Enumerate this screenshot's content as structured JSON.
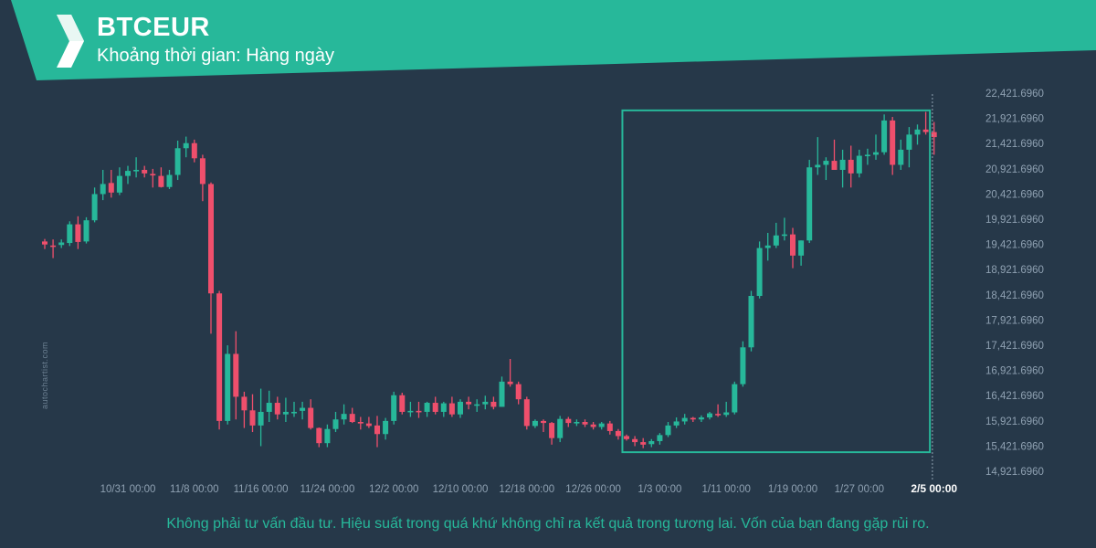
{
  "header": {
    "symbol": "BTCEUR",
    "interval_label": "Khoảng thời gian: Hàng ngày",
    "logo_icon": "autochartist-logo-icon",
    "accent_color": "#27b89a"
  },
  "watermark": "autochartist.com",
  "disclaimer": "Không phải tư vấn đầu tư. Hiệu suất trong quá khứ không chỉ ra kết quả trong tương lai. Vốn của bạn đang gặp rủi ro.",
  "chart_data": {
    "type": "candlestick",
    "up_color": "#27b89a",
    "down_color": "#ef4f6c",
    "pattern_box_color": "#27b89a",
    "y_range": [
      14800,
      22700
    ],
    "y_ticks": [
      "22,421.6960",
      "21,921.6960",
      "21,421.6960",
      "20,921.6960",
      "20,421.6960",
      "19,921.6960",
      "19,421.6960",
      "18,921.6960",
      "18,421.6960",
      "17,921.6960",
      "17,421.6960",
      "16,921.6960",
      "16,421.6960",
      "15,921.6960",
      "15,421.6960",
      "14,921.6960"
    ],
    "x_ticks": [
      {
        "label": "10/31 00:00",
        "day": 10
      },
      {
        "label": "11/8 00:00",
        "day": 18
      },
      {
        "label": "11/16 00:00",
        "day": 26
      },
      {
        "label": "11/24 00:00",
        "day": 34
      },
      {
        "label": "12/2 00:00",
        "day": 42
      },
      {
        "label": "12/10 00:00",
        "day": 50
      },
      {
        "label": "12/18 00:00",
        "day": 58
      },
      {
        "label": "12/26 00:00",
        "day": 66
      },
      {
        "label": "1/3 00:00",
        "day": 74
      },
      {
        "label": "1/11 00:00",
        "day": 82
      },
      {
        "label": "1/19 00:00",
        "day": 90
      },
      {
        "label": "1/27 00:00",
        "day": 98
      },
      {
        "label": "2/5 00:00",
        "day": 107,
        "highlight": true
      }
    ],
    "pattern_box": {
      "start_day": 69.5,
      "end_day": 106.5,
      "top": 22080,
      "bottom": 15300
    },
    "current_marker_day": 106.8,
    "candles": [
      {
        "d": 0,
        "o": 19480,
        "h": 19530,
        "l": 19330,
        "c": 19420
      },
      {
        "d": 1,
        "o": 19400,
        "h": 19520,
        "l": 19150,
        "c": 19390
      },
      {
        "d": 2,
        "o": 19410,
        "h": 19520,
        "l": 19350,
        "c": 19460
      },
      {
        "d": 3,
        "o": 19450,
        "h": 19880,
        "l": 19390,
        "c": 19820
      },
      {
        "d": 4,
        "o": 19820,
        "h": 19980,
        "l": 19330,
        "c": 19470
      },
      {
        "d": 5,
        "o": 19480,
        "h": 19960,
        "l": 19440,
        "c": 19900
      },
      {
        "d": 6,
        "o": 19900,
        "h": 20550,
        "l": 19860,
        "c": 20420
      },
      {
        "d": 7,
        "o": 20420,
        "h": 20900,
        "l": 20300,
        "c": 20620
      },
      {
        "d": 8,
        "o": 20640,
        "h": 20900,
        "l": 20350,
        "c": 20450
      },
      {
        "d": 9,
        "o": 20450,
        "h": 20950,
        "l": 20400,
        "c": 20780
      },
      {
        "d": 10,
        "o": 20780,
        "h": 20980,
        "l": 20620,
        "c": 20880
      },
      {
        "d": 11,
        "o": 20880,
        "h": 21150,
        "l": 20750,
        "c": 20900
      },
      {
        "d": 12,
        "o": 20900,
        "h": 20980,
        "l": 20750,
        "c": 20830
      },
      {
        "d": 13,
        "o": 20820,
        "h": 20920,
        "l": 20550,
        "c": 20790
      },
      {
        "d": 14,
        "o": 20780,
        "h": 20950,
        "l": 20550,
        "c": 20560
      },
      {
        "d": 15,
        "o": 20560,
        "h": 20900,
        "l": 20520,
        "c": 20800
      },
      {
        "d": 16,
        "o": 20800,
        "h": 21480,
        "l": 20700,
        "c": 21330
      },
      {
        "d": 17,
        "o": 21330,
        "h": 21560,
        "l": 21150,
        "c": 21430
      },
      {
        "d": 18,
        "o": 21430,
        "h": 21500,
        "l": 21050,
        "c": 21130
      },
      {
        "d": 19,
        "o": 21130,
        "h": 21200,
        "l": 20280,
        "c": 20620
      },
      {
        "d": 20,
        "o": 20620,
        "h": 20650,
        "l": 17650,
        "c": 18450
      },
      {
        "d": 21,
        "o": 18450,
        "h": 18500,
        "l": 15750,
        "c": 15920
      },
      {
        "d": 22,
        "o": 15920,
        "h": 17420,
        "l": 15850,
        "c": 17250
      },
      {
        "d": 23,
        "o": 17250,
        "h": 17700,
        "l": 15950,
        "c": 16400
      },
      {
        "d": 24,
        "o": 16400,
        "h": 16500,
        "l": 15780,
        "c": 16130
      },
      {
        "d": 25,
        "o": 16130,
        "h": 16450,
        "l": 15700,
        "c": 15830
      },
      {
        "d": 26,
        "o": 15830,
        "h": 16560,
        "l": 15420,
        "c": 16100
      },
      {
        "d": 27,
        "o": 16100,
        "h": 16520,
        "l": 15900,
        "c": 16280
      },
      {
        "d": 28,
        "o": 16280,
        "h": 16400,
        "l": 15950,
        "c": 16050
      },
      {
        "d": 29,
        "o": 16050,
        "h": 16380,
        "l": 15900,
        "c": 16100
      },
      {
        "d": 30,
        "o": 16100,
        "h": 16300,
        "l": 16000,
        "c": 16100
      },
      {
        "d": 31,
        "o": 16120,
        "h": 16300,
        "l": 15950,
        "c": 16180
      },
      {
        "d": 32,
        "o": 16180,
        "h": 16350,
        "l": 15750,
        "c": 15780
      },
      {
        "d": 33,
        "o": 15780,
        "h": 15790,
        "l": 15400,
        "c": 15480
      },
      {
        "d": 34,
        "o": 15480,
        "h": 15850,
        "l": 15400,
        "c": 15760
      },
      {
        "d": 35,
        "o": 15760,
        "h": 16100,
        "l": 15700,
        "c": 15950
      },
      {
        "d": 36,
        "o": 15950,
        "h": 16250,
        "l": 15850,
        "c": 16060
      },
      {
        "d": 37,
        "o": 16060,
        "h": 16180,
        "l": 15880,
        "c": 15900
      },
      {
        "d": 38,
        "o": 15900,
        "h": 16000,
        "l": 15750,
        "c": 15870
      },
      {
        "d": 39,
        "o": 15870,
        "h": 16000,
        "l": 15780,
        "c": 15820
      },
      {
        "d": 40,
        "o": 15830,
        "h": 16020,
        "l": 15400,
        "c": 15660
      },
      {
        "d": 41,
        "o": 15660,
        "h": 15980,
        "l": 15550,
        "c": 15920
      },
      {
        "d": 42,
        "o": 15920,
        "h": 16500,
        "l": 15850,
        "c": 16430
      },
      {
        "d": 43,
        "o": 16430,
        "h": 16480,
        "l": 16050,
        "c": 16100
      },
      {
        "d": 44,
        "o": 16100,
        "h": 16300,
        "l": 16000,
        "c": 16120
      },
      {
        "d": 45,
        "o": 16120,
        "h": 16300,
        "l": 15980,
        "c": 16100
      },
      {
        "d": 46,
        "o": 16100,
        "h": 16300,
        "l": 16000,
        "c": 16280
      },
      {
        "d": 47,
        "o": 16280,
        "h": 16400,
        "l": 16050,
        "c": 16100
      },
      {
        "d": 48,
        "o": 16100,
        "h": 16300,
        "l": 16000,
        "c": 16270
      },
      {
        "d": 49,
        "o": 16270,
        "h": 16400,
        "l": 16000,
        "c": 16050
      },
      {
        "d": 50,
        "o": 16050,
        "h": 16350,
        "l": 15980,
        "c": 16300
      },
      {
        "d": 51,
        "o": 16300,
        "h": 16400,
        "l": 16150,
        "c": 16250
      },
      {
        "d": 52,
        "o": 16250,
        "h": 16350,
        "l": 16100,
        "c": 16250
      },
      {
        "d": 53,
        "o": 16250,
        "h": 16420,
        "l": 16150,
        "c": 16300
      },
      {
        "d": 54,
        "o": 16300,
        "h": 16400,
        "l": 16150,
        "c": 16200
      },
      {
        "d": 55,
        "o": 16200,
        "h": 16800,
        "l": 16200,
        "c": 16700
      },
      {
        "d": 56,
        "o": 16700,
        "h": 17150,
        "l": 16600,
        "c": 16650
      },
      {
        "d": 57,
        "o": 16650,
        "h": 16700,
        "l": 16250,
        "c": 16350
      },
      {
        "d": 58,
        "o": 16350,
        "h": 16400,
        "l": 15750,
        "c": 15820
      },
      {
        "d": 59,
        "o": 15820,
        "h": 15950,
        "l": 15780,
        "c": 15920
      },
      {
        "d": 60,
        "o": 15920,
        "h": 15950,
        "l": 15700,
        "c": 15880
      },
      {
        "d": 61,
        "o": 15880,
        "h": 15900,
        "l": 15450,
        "c": 15580
      },
      {
        "d": 62,
        "o": 15580,
        "h": 16020,
        "l": 15500,
        "c": 15960
      },
      {
        "d": 63,
        "o": 15960,
        "h": 16000,
        "l": 15800,
        "c": 15880
      },
      {
        "d": 64,
        "o": 15880,
        "h": 15950,
        "l": 15820,
        "c": 15900
      },
      {
        "d": 65,
        "o": 15900,
        "h": 15950,
        "l": 15800,
        "c": 15850
      },
      {
        "d": 66,
        "o": 15850,
        "h": 15900,
        "l": 15750,
        "c": 15800
      },
      {
        "d": 67,
        "o": 15800,
        "h": 15900,
        "l": 15750,
        "c": 15870
      },
      {
        "d": 68,
        "o": 15870,
        "h": 15920,
        "l": 15650,
        "c": 15720
      },
      {
        "d": 69,
        "o": 15720,
        "h": 15760,
        "l": 15550,
        "c": 15620
      },
      {
        "d": 70,
        "o": 15620,
        "h": 15650,
        "l": 15530,
        "c": 15560
      },
      {
        "d": 71,
        "o": 15560,
        "h": 15620,
        "l": 15420,
        "c": 15500
      },
      {
        "d": 72,
        "o": 15500,
        "h": 15580,
        "l": 15380,
        "c": 15450
      },
      {
        "d": 73,
        "o": 15460,
        "h": 15560,
        "l": 15400,
        "c": 15520
      },
      {
        "d": 74,
        "o": 15520,
        "h": 15680,
        "l": 15450,
        "c": 15640
      },
      {
        "d": 75,
        "o": 15640,
        "h": 15900,
        "l": 15600,
        "c": 15830
      },
      {
        "d": 76,
        "o": 15830,
        "h": 15990,
        "l": 15780,
        "c": 15910
      },
      {
        "d": 77,
        "o": 15910,
        "h": 16060,
        "l": 15850,
        "c": 15980
      },
      {
        "d": 78,
        "o": 15980,
        "h": 16000,
        "l": 15900,
        "c": 15950
      },
      {
        "d": 79,
        "o": 15950,
        "h": 16030,
        "l": 15900,
        "c": 15990
      },
      {
        "d": 80,
        "o": 15990,
        "h": 16100,
        "l": 15950,
        "c": 16070
      },
      {
        "d": 81,
        "o": 16060,
        "h": 16250,
        "l": 16000,
        "c": 16040
      },
      {
        "d": 82,
        "o": 16040,
        "h": 16300,
        "l": 16000,
        "c": 16090
      },
      {
        "d": 83,
        "o": 16090,
        "h": 16700,
        "l": 16050,
        "c": 16650
      },
      {
        "d": 84,
        "o": 16650,
        "h": 17500,
        "l": 16600,
        "c": 17380
      },
      {
        "d": 85,
        "o": 17380,
        "h": 18500,
        "l": 17300,
        "c": 18400
      },
      {
        "d": 86,
        "o": 18400,
        "h": 19480,
        "l": 18350,
        "c": 19350
      },
      {
        "d": 87,
        "o": 19350,
        "h": 19650,
        "l": 19100,
        "c": 19400
      },
      {
        "d": 88,
        "o": 19400,
        "h": 19850,
        "l": 19350,
        "c": 19600
      },
      {
        "d": 89,
        "o": 19600,
        "h": 19950,
        "l": 19500,
        "c": 19620
      },
      {
        "d": 90,
        "o": 19620,
        "h": 19750,
        "l": 18950,
        "c": 19200
      },
      {
        "d": 91,
        "o": 19200,
        "h": 19500,
        "l": 19000,
        "c": 19500
      },
      {
        "d": 92,
        "o": 19500,
        "h": 21100,
        "l": 19450,
        "c": 20950
      },
      {
        "d": 93,
        "o": 20950,
        "h": 21550,
        "l": 20800,
        "c": 21000
      },
      {
        "d": 94,
        "o": 21000,
        "h": 21150,
        "l": 20700,
        "c": 21080
      },
      {
        "d": 95,
        "o": 21080,
        "h": 21500,
        "l": 20900,
        "c": 20900
      },
      {
        "d": 96,
        "o": 20900,
        "h": 21300,
        "l": 20550,
        "c": 21100
      },
      {
        "d": 97,
        "o": 21100,
        "h": 21380,
        "l": 20550,
        "c": 20830
      },
      {
        "d": 98,
        "o": 20830,
        "h": 21300,
        "l": 20750,
        "c": 21180
      },
      {
        "d": 99,
        "o": 21180,
        "h": 21320,
        "l": 21000,
        "c": 21200
      },
      {
        "d": 100,
        "o": 21200,
        "h": 21600,
        "l": 21100,
        "c": 21250
      },
      {
        "d": 101,
        "o": 21250,
        "h": 22000,
        "l": 21200,
        "c": 21880
      },
      {
        "d": 102,
        "o": 21880,
        "h": 21950,
        "l": 20800,
        "c": 21000
      },
      {
        "d": 103,
        "o": 21000,
        "h": 21500,
        "l": 20900,
        "c": 21300
      },
      {
        "d": 104,
        "o": 21300,
        "h": 21750,
        "l": 20950,
        "c": 21600
      },
      {
        "d": 105,
        "o": 21600,
        "h": 21800,
        "l": 21400,
        "c": 21700
      },
      {
        "d": 106,
        "o": 21700,
        "h": 22050,
        "l": 21600,
        "c": 21650
      },
      {
        "d": 107,
        "o": 21650,
        "h": 21850,
        "l": 21200,
        "c": 21550
      }
    ]
  }
}
